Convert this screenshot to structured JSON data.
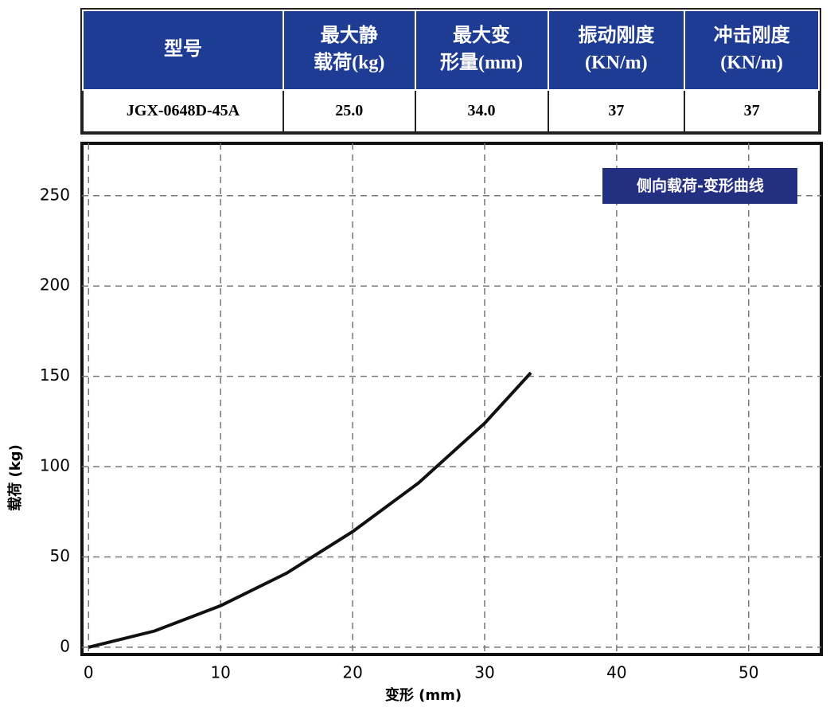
{
  "table": {
    "header": [
      [
        "型号"
      ],
      [
        "最大静",
        "载荷(kg)"
      ],
      [
        "最大变",
        "形量(mm)"
      ],
      [
        "振动刚度",
        "(KN/m)"
      ],
      [
        "冲击刚度",
        "(KN/m)"
      ]
    ],
    "rows": [
      [
        "JGX-0648D-45A",
        "25.0",
        "34.0",
        "37",
        "37"
      ]
    ]
  },
  "chart_data": {
    "type": "line",
    "legend_label": "侧向载荷-变形曲线",
    "x_label": "变形 (mm)",
    "y_label": "载荷 (kg)",
    "x": [
      0,
      5,
      10,
      15,
      20,
      25,
      30,
      33.5
    ],
    "values": [
      0,
      9,
      23,
      41,
      64,
      91,
      124,
      152
    ],
    "color": "#111111",
    "xlim": [
      -0.5,
      55.5
    ],
    "ylim": [
      -4,
      279
    ],
    "xticks": [
      0,
      10,
      20,
      30,
      40,
      50
    ],
    "yticks": [
      0,
      50,
      100,
      150,
      200,
      250
    ],
    "grid": true
  }
}
